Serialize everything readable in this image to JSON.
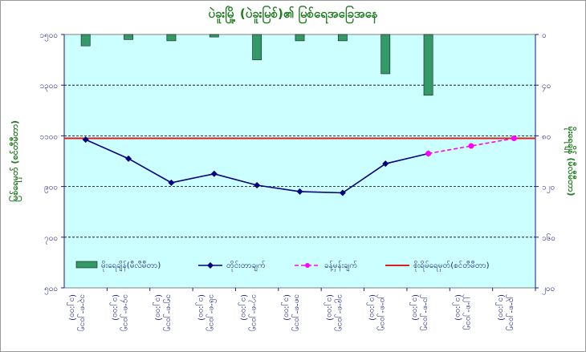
{
  "chart_data": {
    "type": "bar+line",
    "title": "ပဲခူးမြို့ (ပဲခူးမြစ်)၏ မြစ်ရေအခြေအနေ",
    "ylabel_left": "မြစ်ရေမှတ် (စင်တီမီတာ)",
    "ylabel_right": "မိုးရေချိန် (မီလီမီတာ)",
    "y_left": {
      "min": 500,
      "max": 1500,
      "ticks": [
        "၅၀၀",
        "၇၀၀",
        "၉၀၀",
        "၁၁၀၀",
        "၁၃၀၀",
        "၁၅၀၀"
      ]
    },
    "y_right": {
      "min": 0,
      "max": 200,
      "inverted": true,
      "ticks": [
        "၀",
        "၄၀",
        "၈၀",
        "၁၂၀",
        "၁၆၀",
        "၂၀၀"
      ]
    },
    "categories": [
      [
        "၁၃-၈-၂၀၁၅",
        "(၁၂:၀၀)"
      ],
      [
        "၁၄-၈-၂၀၁၅",
        "(၁၂:၀၀)"
      ],
      [
        "၁၅-၈-၂၀၁၅",
        "(၁၂:၀၀)"
      ],
      [
        "၁၆-၈-၂၀၁၅",
        "(၁၂:၀၀)"
      ],
      [
        "၁၇-၈-၂၀၁၅",
        "(၁၂:၀၀)"
      ],
      [
        "၁၈-၈-၂၀၁၅",
        "(၁၂:၀၀)"
      ],
      [
        "၁၉-၈-၂၀၁၅",
        "(၁၂:၀၀)"
      ],
      [
        "၂၀-၈-၂၀၁၅",
        "(၁၂:၀၀)"
      ],
      [
        "၂၁-၈-၂၀၁၅",
        "(၁၂:၀၀)"
      ],
      [
        "၂၂-၈-၂၀၁၅",
        "(၁၂:၀၀)"
      ],
      [
        "၂၃-၈-၂၀၁၅",
        "(၁၂:၀၀)"
      ]
    ],
    "rainfall": [
      9,
      4,
      5,
      2,
      20,
      5,
      5,
      31,
      48,
      null,
      null
    ],
    "observed": [
      1085,
      1010,
      915,
      950,
      905,
      880,
      875,
      990,
      1030,
      null,
      null
    ],
    "forecast": [
      null,
      null,
      null,
      null,
      null,
      null,
      null,
      null,
      1030,
      1060,
      1090
    ],
    "danger_level": 1090,
    "legend": [
      {
        "key": "rainfall",
        "label": "မိုးရေချိန်(မီလီမီတာ)"
      },
      {
        "key": "observed",
        "label": "တိုင်းတာချက်"
      },
      {
        "key": "forecast",
        "label": "ခန့်မှန်းချက်"
      },
      {
        "key": "danger",
        "label": "စိုးရိမ်ရေမှတ်(စင်တီမီတာ)"
      }
    ],
    "colors": {
      "plot_bg": "#ccffff",
      "rainfall": "#339966",
      "observed": "#000080",
      "forecast": "#ff00ff",
      "danger": "#d91e1e"
    },
    "grid": true
  }
}
